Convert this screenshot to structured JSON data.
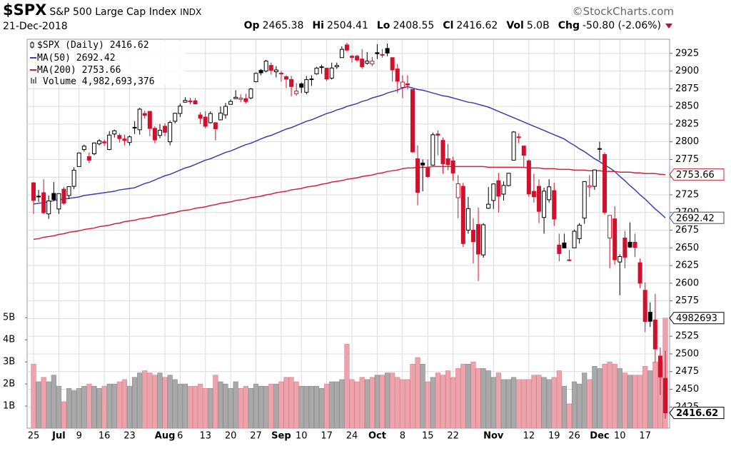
{
  "header": {
    "symbol": "$SPX",
    "name": "S&P 500 Large Cap Index",
    "exchange": "INDX",
    "brand": "©StockCharts.com",
    "date": "21-Dec-2018",
    "stats": [
      {
        "label": "Op",
        "value": "2465.38"
      },
      {
        "label": "Hi",
        "value": "2504.41"
      },
      {
        "label": "Lo",
        "value": "2408.55"
      },
      {
        "label": "Cl",
        "value": "2416.62"
      },
      {
        "label": "Vol",
        "value": "5.0B"
      },
      {
        "label": "Chg",
        "value": "-50.80 (-2.06%)"
      }
    ]
  },
  "chart_data": {
    "type": "candlestick",
    "categories": [
      "25",
      null,
      null,
      null,
      null,
      "Jul",
      null,
      null,
      null,
      "9",
      null,
      null,
      null,
      null,
      "16",
      null,
      null,
      null,
      null,
      "23",
      null,
      null,
      null,
      null,
      null,
      null,
      "Aug",
      null,
      null,
      "6",
      null,
      null,
      null,
      null,
      "13",
      null,
      null,
      null,
      null,
      "20",
      null,
      null,
      null,
      null,
      "27",
      null,
      null,
      null,
      null,
      "Sep",
      null,
      null,
      null,
      "10",
      null,
      null,
      null,
      null,
      "17",
      null,
      null,
      null,
      null,
      "24",
      null,
      null,
      null,
      null,
      "Oct",
      null,
      null,
      null,
      null,
      "8",
      null,
      null,
      null,
      null,
      "15",
      null,
      null,
      null,
      null,
      "22",
      null,
      null,
      null,
      null,
      null,
      null,
      null,
      "Nov",
      null,
      null,
      null,
      null,
      null,
      null,
      "12",
      null,
      null,
      null,
      null,
      "19",
      null,
      null,
      null,
      "26",
      null,
      null,
      null,
      null,
      "Dec",
      null,
      null,
      null,
      "10",
      null,
      null,
      null,
      null,
      "17",
      null,
      null,
      null,
      null
    ],
    "candles": {
      "name": "$SPX (Daily)",
      "up_color": "#000000",
      "down_color": "#d0102c",
      "open": [
        2742,
        2722,
        2728,
        2698,
        2727,
        2705,
        2733,
        2724,
        2737,
        2765,
        2789,
        2779,
        2783,
        2797,
        2800,
        2789,
        2811,
        2809,
        2804,
        2799,
        2820,
        2817,
        2840,
        2843,
        2819,
        2809,
        2822,
        2800,
        2829,
        2840,
        2856,
        2857,
        2858,
        2838,
        2835,
        2827,
        2827,
        2831,
        2838,
        2853,
        2861,
        2860,
        2861,
        2862,
        2885,
        2901,
        2900,
        2908,
        2899,
        2897,
        2892,
        2888,
        2868,
        2882,
        2870,
        2888,
        2896,
        2906,
        2904,
        2890,
        2906,
        2919,
        2937,
        2921,
        2921,
        2917,
        2911,
        2910,
        2926,
        2923,
        2932,
        2919,
        2903,
        2877,
        2882,
        2874,
        2776,
        2770,
        2763,
        2767,
        2811,
        2802,
        2776,
        2773,
        2721,
        2737,
        2675,
        2675,
        2683,
        2640,
        2706,
        2717,
        2745,
        2726,
        2738,
        2774,
        2807,
        2794,
        2773,
        2730,
        2737,
        2693,
        2718,
        2731,
        2654,
        2657,
        2633,
        2650,
        2663,
        2692,
        2736,
        2737,
        2790,
        2782,
        2664,
        2691,
        2630,
        2664,
        2658,
        2658,
        2629,
        2590,
        2559,
        2548,
        2497,
        2465.38
      ],
      "high": [
        2743,
        2732,
        2747,
        2724,
        2743,
        2727,
        2736,
        2737,
        2764,
        2785,
        2796,
        2785,
        2799,
        2804,
        2803,
        2815,
        2817,
        2812,
        2810,
        2809,
        2829,
        2848,
        2844,
        2843,
        2822,
        2825,
        2826,
        2830,
        2841,
        2854,
        2863,
        2862,
        2862,
        2842,
        2843,
        2843,
        2828,
        2850,
        2855,
        2860,
        2873,
        2867,
        2868,
        2876,
        2898,
        2903,
        2916,
        2912,
        2907,
        2900,
        2894,
        2893,
        2883,
        2884,
        2893,
        2894,
        2906,
        2909,
        2905,
        2912,
        2912,
        2935,
        2940,
        2923,
        2923,
        2931,
        2927,
        2920,
        2938,
        2931,
        2939,
        2919,
        2910,
        2894,
        2894,
        2874,
        2795,
        2775,
        2775,
        2813,
        2816,
        2806,
        2797,
        2779,
        2753,
        2742,
        2722,
        2692,
        2707,
        2685,
        2736,
        2741,
        2756,
        2744,
        2756,
        2815,
        2812,
        2794,
        2775,
        2755,
        2747,
        2735,
        2747,
        2742,
        2670,
        2670,
        2647,
        2676,
        2685,
        2744,
        2753,
        2761,
        2800,
        2785,
        2696,
        2709,
        2641,
        2674,
        2686,
        2670,
        2635,
        2601,
        2573,
        2585,
        2509,
        2504.41
      ],
      "low": [
        2698,
        2715,
        2698,
        2691,
        2716,
        2698,
        2711,
        2719,
        2733,
        2765,
        2786,
        2770,
        2781,
        2795,
        2794,
        2788,
        2806,
        2799,
        2795,
        2795,
        2811,
        2810,
        2833,
        2808,
        2798,
        2805,
        2808,
        2795,
        2826,
        2835,
        2855,
        2853,
        2853,
        2825,
        2819,
        2826,
        2802,
        2831,
        2833,
        2853,
        2861,
        2856,
        2854,
        2860,
        2884,
        2894,
        2898,
        2895,
        2891,
        2885,
        2876,
        2864,
        2865,
        2869,
        2867,
        2879,
        2895,
        2896,
        2886,
        2888,
        2903,
        2919,
        2927,
        2912,
        2913,
        2903,
        2909,
        2907,
        2917,
        2919,
        2921,
        2885,
        2869,
        2862,
        2874,
        2784,
        2710,
        2730,
        2749,
        2767,
        2781,
        2755,
        2760,
        2745,
        2692,
        2651,
        2670,
        2628,
        2603,
        2636,
        2705,
        2705,
        2700,
        2717,
        2737,
        2774,
        2798,
        2765,
        2722,
        2714,
        2685,
        2670,
        2714,
        2681,
        2631,
        2649,
        2631,
        2650,
        2656,
        2684,
        2722,
        2732,
        2774,
        2697,
        2621,
        2626,
        2583,
        2621,
        2650,
        2637,
        2593,
        2531,
        2538,
        2488,
        2442,
        2408.55
      ],
      "close": [
        2717.07,
        2723.06,
        2699.63,
        2716.31,
        2718.37,
        2726.71,
        2713.22,
        2736.61,
        2759.82,
        2784.17,
        2793.84,
        2774.02,
        2798.29,
        2801.31,
        2798.43,
        2809.55,
        2815.62,
        2804.49,
        2801.83,
        2806.98,
        2820.4,
        2846.07,
        2837.44,
        2818.82,
        2802.6,
        2816.29,
        2813.36,
        2827.22,
        2840.35,
        2850.4,
        2858.45,
        2857.7,
        2853.58,
        2833.28,
        2821.93,
        2839.96,
        2818.37,
        2840.69,
        2850.13,
        2857.05,
        2862.96,
        2861.82,
        2856.98,
        2874.69,
        2896.74,
        2897.52,
        2914.04,
        2901.13,
        2901.52,
        2896.72,
        2888.6,
        2878.05,
        2871.68,
        2877.13,
        2887.89,
        2888.92,
        2904.18,
        2904.98,
        2888.8,
        2904.31,
        2907.95,
        2930.75,
        2929.67,
        2919.37,
        2915.56,
        2905.97,
        2914,
        2913.98,
        2924.59,
        2923.43,
        2925.51,
        2901.61,
        2885.57,
        2884.43,
        2880.34,
        2785.68,
        2728.37,
        2767.13,
        2750.79,
        2809.92,
        2809.21,
        2768.78,
        2767.78,
        2755.88,
        2740.69,
        2656.1,
        2705.57,
        2658.69,
        2641.25,
        2682.63,
        2711.74,
        2740.37,
        2723.06,
        2738.31,
        2755.45,
        2813.89,
        2806.83,
        2781.01,
        2726.22,
        2722.18,
        2701.58,
        2730.2,
        2736.27,
        2690.73,
        2641.89,
        2649.93,
        2632.56,
        2673.45,
        2682.17,
        2743.79,
        2737.8,
        2760.17,
        2790.37,
        2700.06,
        2695.95,
        2633.08,
        2637.72,
        2636.78,
        2651.07,
        2650.54,
        2599.95,
        2545.94,
        2546.16,
        2506.96,
        2467.42,
        2416.62
      ]
    },
    "series": [
      {
        "name": "MA(50)",
        "color": "#3b3fae",
        "values": [
          2712,
          2713,
          2714,
          2715,
          2717,
          2718,
          2719,
          2720,
          2721,
          2722,
          2724,
          2725,
          2726,
          2727,
          2728,
          2729,
          2730,
          2732,
          2733,
          2734,
          2735,
          2738,
          2741,
          2743,
          2746,
          2749,
          2752,
          2754,
          2757,
          2760,
          2763,
          2765,
          2768,
          2771,
          2774,
          2776,
          2779,
          2782,
          2785,
          2787,
          2790,
          2793,
          2796,
          2798,
          2801,
          2804,
          2807,
          2809,
          2812,
          2815,
          2818,
          2820,
          2823,
          2826,
          2829,
          2831,
          2834,
          2837,
          2840,
          2842,
          2845,
          2847,
          2850,
          2852,
          2854,
          2857,
          2859,
          2862,
          2864,
          2866,
          2869,
          2871,
          2873,
          2876,
          2878,
          2876,
          2874,
          2873,
          2871,
          2869,
          2867,
          2865,
          2864,
          2862,
          2860,
          2858,
          2856,
          2855,
          2853,
          2851,
          2849,
          2846,
          2843,
          2840,
          2837,
          2834,
          2831,
          2828,
          2825,
          2822,
          2819,
          2816,
          2813,
          2810,
          2807,
          2804,
          2799,
          2795,
          2790,
          2786,
          2781,
          2776,
          2772,
          2767,
          2763,
          2758,
          2751,
          2745,
          2738,
          2732,
          2725,
          2719,
          2712,
          2705,
          2699,
          2692.42
        ]
      },
      {
        "name": "MA(200)",
        "color": "#d0243a",
        "values": [
          2662,
          2663,
          2665,
          2666,
          2667,
          2669,
          2670,
          2672,
          2673,
          2674,
          2676,
          2677,
          2678,
          2680,
          2681,
          2682,
          2684,
          2685,
          2687,
          2688,
          2689,
          2691,
          2692,
          2693,
          2695,
          2696,
          2697,
          2699,
          2700,
          2702,
          2703,
          2704,
          2706,
          2707,
          2708,
          2710,
          2711,
          2713,
          2714,
          2715,
          2717,
          2718,
          2719,
          2721,
          2722,
          2723,
          2725,
          2726,
          2728,
          2729,
          2730,
          2732,
          2733,
          2734,
          2736,
          2737,
          2738,
          2740,
          2741,
          2743,
          2744,
          2745,
          2747,
          2748,
          2749,
          2751,
          2752,
          2753,
          2755,
          2756,
          2758,
          2759,
          2760,
          2762,
          2763,
          2763,
          2764,
          2764,
          2764,
          2765,
          2765,
          2765,
          2765,
          2765,
          2765,
          2765,
          2765,
          2765,
          2765,
          2765,
          2764,
          2764,
          2764,
          2764,
          2764,
          2764,
          2764,
          2764,
          2763,
          2763,
          2763,
          2762,
          2762,
          2762,
          2761,
          2761,
          2761,
          2760,
          2760,
          2760,
          2759,
          2759,
          2759,
          2758,
          2758,
          2758,
          2757,
          2757,
          2757,
          2756,
          2756,
          2755,
          2755,
          2755,
          2754,
          2753.66
        ]
      }
    ],
    "volume": {
      "name": "Volume",
      "axis": "y2",
      "up_color": "#a9a9a9",
      "down_color": "#eda3ab",
      "last_label": "4,982,693,376",
      "tag_label": "4982693",
      "values": [
        2.9,
        2.1,
        2.3,
        2.1,
        2.4,
        1.9,
        1.2,
        1.8,
        1.7,
        1.8,
        1.9,
        2.0,
        1.9,
        1.8,
        1.9,
        2.0,
        2.0,
        2.1,
        2.2,
        1.9,
        2.3,
        2.5,
        2.6,
        2.5,
        2.4,
        2.5,
        2.3,
        2.4,
        2.2,
        2.0,
        2.0,
        1.9,
        1.9,
        2.0,
        1.8,
        1.8,
        2.4,
        2.1,
        2.0,
        1.8,
        2.1,
        1.8,
        1.9,
        1.8,
        2.0,
        1.9,
        1.9,
        2.0,
        2.0,
        2.1,
        2.3,
        2.3,
        2.1,
        1.9,
        1.9,
        1.9,
        1.9,
        1.8,
        2.0,
        2.1,
        2.1,
        2.2,
        3.8,
        2.2,
        2.1,
        2.3,
        2.2,
        2.3,
        2.4,
        2.4,
        2.5,
        2.5,
        2.3,
        2.2,
        2.2,
        2.9,
        3.2,
        2.9,
        2.1,
        2.3,
        2.5,
        2.4,
        2.6,
        2.3,
        2.7,
        2.9,
        2.9,
        3.0,
        2.7,
        2.7,
        2.6,
        2.3,
        2.5,
        2.2,
        2.2,
        2.3,
        2.2,
        2.2,
        2.2,
        2.4,
        2.4,
        2.3,
        2.2,
        2.3,
        2.6,
        1.9,
        1.1,
        2.1,
        2.0,
        2.5,
        2.2,
        2.8,
        2.7,
        2.9,
        3.0,
        2.9,
        2.7,
        2.5,
        2.4,
        2.4,
        2.4,
        2.8,
        2.6,
        3.0,
        3.0,
        4.982693376
      ]
    },
    "ylim": [
      2395,
      2945
    ],
    "yticks": [
      2425,
      2450,
      2475,
      2500,
      2525,
      2550,
      2575,
      2600,
      2625,
      2650,
      2675,
      2700,
      2725,
      2750,
      2775,
      2800,
      2825,
      2850,
      2875,
      2900,
      2925
    ],
    "y2lim": [
      0,
      17.6
    ],
    "y2ticks": [
      {
        "value": 1,
        "label": "1B"
      },
      {
        "value": 2,
        "label": "2B"
      },
      {
        "value": 3,
        "label": "3B"
      },
      {
        "value": 4,
        "label": "4B"
      },
      {
        "value": 5,
        "label": "5B"
      }
    ],
    "grid": true
  }
}
